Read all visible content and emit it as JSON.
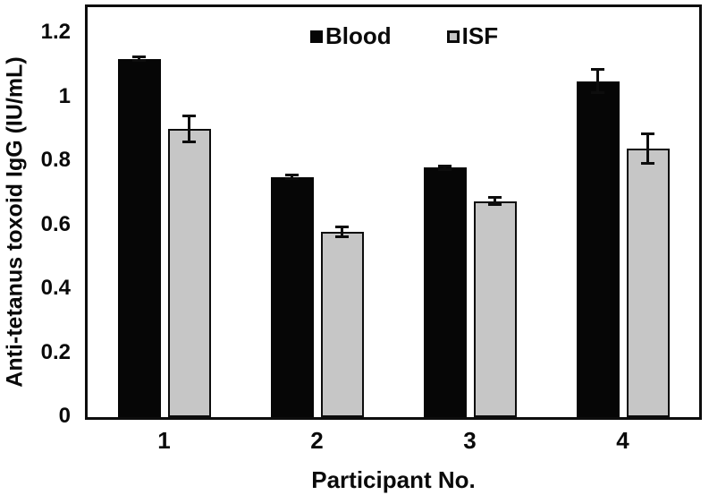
{
  "colors": {
    "blood_fill": "#060606",
    "isf_fill": "#c6c6c6",
    "isf_border": "#0d0d0d",
    "axis": "#0d0d0d",
    "background": "#ffffff"
  },
  "chart_data": {
    "type": "bar",
    "title": "",
    "categories": [
      "1",
      "2",
      "3",
      "4"
    ],
    "series": [
      {
        "name": "Blood",
        "values": [
          1.12,
          0.75,
          0.78,
          1.05
        ],
        "errors": [
          0.01,
          0.01,
          0.01,
          0.04
        ],
        "color": "#060606"
      },
      {
        "name": "ISF",
        "values": [
          0.9,
          0.58,
          0.675,
          0.84
        ],
        "errors": [
          0.045,
          0.02,
          0.015,
          0.05
        ],
        "color": "#c6c6c6"
      }
    ],
    "xlabel": "Participant No.",
    "ylabel": "Anti-tetanus toxoid IgG (IU/mL)",
    "ylim": [
      0,
      1.2
    ],
    "yticks": [
      0,
      0.2,
      0.4,
      0.6,
      0.8,
      1,
      1.2
    ],
    "ytick_labels": [
      "0",
      "0.2",
      "0.4",
      "0.6",
      "0.8",
      "1",
      "1.2"
    ],
    "legend_position": "top-center",
    "grid": false,
    "error_bars": true
  }
}
